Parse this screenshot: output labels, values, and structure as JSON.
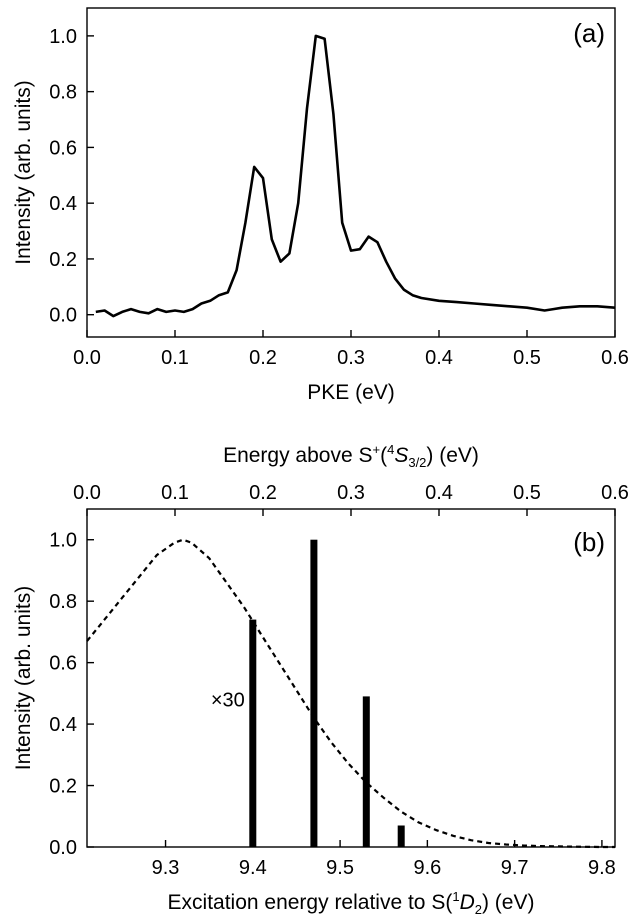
{
  "chart_data": [
    {
      "type": "line",
      "panel_label": "(a)",
      "xlabel": "PKE (eV)",
      "ylabel": "Intensity (arb. units)",
      "xlim": [
        0,
        0.6
      ],
      "ylim": [
        -0.08,
        1.1
      ],
      "x_ticks": [
        "0.0",
        "0.1",
        "0.2",
        "0.3",
        "0.4",
        "0.5",
        "0.6"
      ],
      "x_tick_values": [
        0,
        0.1,
        0.2,
        0.3,
        0.4,
        0.5,
        0.6
      ],
      "y_ticks": [
        "0.0",
        "0.2",
        "0.4",
        "0.6",
        "0.8",
        "1.0"
      ],
      "y_tick_values": [
        0,
        0.2,
        0.4,
        0.6,
        0.8,
        1.0
      ],
      "grid": false,
      "series": [
        {
          "color": "#000000",
          "x": [
            0.01,
            0.02,
            0.03,
            0.04,
            0.05,
            0.06,
            0.07,
            0.08,
            0.09,
            0.1,
            0.11,
            0.12,
            0.13,
            0.14,
            0.15,
            0.16,
            0.17,
            0.18,
            0.19,
            0.2,
            0.21,
            0.22,
            0.23,
            0.24,
            0.25,
            0.26,
            0.27,
            0.28,
            0.29,
            0.3,
            0.31,
            0.32,
            0.33,
            0.34,
            0.35,
            0.36,
            0.37,
            0.38,
            0.4,
            0.42,
            0.44,
            0.46,
            0.48,
            0.5,
            0.52,
            0.53,
            0.54,
            0.56,
            0.58,
            0.6
          ],
          "y": [
            0.01,
            0.015,
            -0.005,
            0.01,
            0.02,
            0.01,
            0.005,
            0.02,
            0.01,
            0.015,
            0.01,
            0.02,
            0.04,
            0.05,
            0.07,
            0.08,
            0.16,
            0.33,
            0.53,
            0.49,
            0.27,
            0.19,
            0.22,
            0.4,
            0.74,
            1.0,
            0.99,
            0.72,
            0.33,
            0.23,
            0.235,
            0.28,
            0.26,
            0.19,
            0.13,
            0.09,
            0.07,
            0.06,
            0.05,
            0.045,
            0.04,
            0.035,
            0.03,
            0.025,
            0.015,
            0.02,
            0.025,
            0.03,
            0.03,
            0.025
          ]
        }
      ]
    },
    {
      "type": "bar",
      "panel_label": "(b)",
      "xlabel": "Excitation energy relative to S(¹D₂) (eV)",
      "x2label": "Energy above S⁺(⁴S₃/₂) (eV)",
      "ylabel": "Intensity (arb. units)",
      "xlim": [
        9.21,
        9.815
      ],
      "x2lim": [
        0,
        0.6
      ],
      "ylim": [
        0,
        1.1
      ],
      "x_ticks": [
        "9.3",
        "9.4",
        "9.5",
        "9.6",
        "9.7",
        "9.8"
      ],
      "x_tick_values": [
        9.3,
        9.4,
        9.5,
        9.6,
        9.7,
        9.8
      ],
      "x2_ticks": [
        "0.0",
        "0.1",
        "0.2",
        "0.3",
        "0.4",
        "0.5",
        "0.6"
      ],
      "x2_tick_values": [
        0,
        0.1,
        0.2,
        0.3,
        0.4,
        0.5,
        0.6
      ],
      "y_ticks": [
        "0.0",
        "0.2",
        "0.4",
        "0.6",
        "0.8",
        "1.0"
      ],
      "y_tick_values": [
        0,
        0.2,
        0.4,
        0.6,
        0.8,
        1.0
      ],
      "grid": false,
      "bars": {
        "x": [
          9.4,
          9.47,
          9.53,
          9.57
        ],
        "values": [
          0.74,
          1.0,
          0.49,
          0.07
        ],
        "color": "#000000"
      },
      "dashed_curve": {
        "color": "#000000",
        "x": [
          9.21,
          9.23,
          9.25,
          9.27,
          9.29,
          9.31,
          9.32,
          9.33,
          9.35,
          9.37,
          9.39,
          9.41,
          9.43,
          9.45,
          9.47,
          9.49,
          9.51,
          9.53,
          9.55,
          9.57,
          9.59,
          9.61,
          9.63,
          9.65,
          9.67,
          9.69,
          9.71,
          9.73,
          9.75,
          9.77,
          9.8,
          9.815
        ],
        "y": [
          0.67,
          0.74,
          0.81,
          0.88,
          0.95,
          0.99,
          1.0,
          0.99,
          0.94,
          0.86,
          0.78,
          0.69,
          0.6,
          0.51,
          0.42,
          0.34,
          0.27,
          0.21,
          0.16,
          0.115,
          0.08,
          0.055,
          0.036,
          0.022,
          0.013,
          0.008,
          0.005,
          0.003,
          0.002,
          0.001,
          0.0,
          0.0
        ]
      },
      "annotation": "×30"
    }
  ]
}
